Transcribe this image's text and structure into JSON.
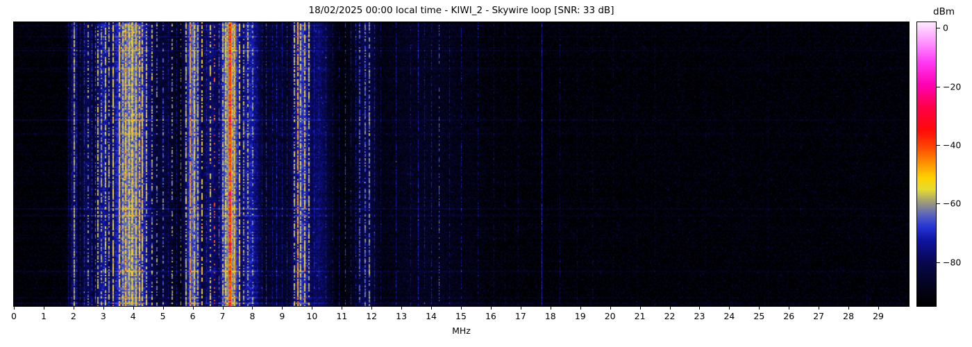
{
  "figure": {
    "title": "18/02/2025 00:00 local time - KIWI_2 - Skywire loop [SNR: 33 dB]"
  },
  "x_axis": {
    "label": "MHz",
    "min_mhz": 0,
    "max_mhz": 30,
    "tick_labels": [
      "0",
      "1",
      "2",
      "3",
      "4",
      "5",
      "6",
      "7",
      "8",
      "9",
      "10",
      "11",
      "12",
      "13",
      "14",
      "15",
      "16",
      "17",
      "18",
      "19",
      "20",
      "21",
      "22",
      "23",
      "24",
      "25",
      "26",
      "27",
      "28",
      "29"
    ]
  },
  "colorbar": {
    "title": "dBm",
    "tick_values": [
      0,
      -20,
      -40,
      -60,
      -80
    ],
    "tick_labels": [
      "0",
      "−20",
      "−40",
      "−60",
      "−80"
    ],
    "vmax_dbm": 2,
    "vmin_dbm": -95
  },
  "chart_data": {
    "type": "heatmap",
    "subtype": "radio-spectrum-waterfall",
    "title": "18/02/2025 00:00 local time - KIWI_2 - Skywire loop [SNR: 33 dB]",
    "xlabel": "MHz",
    "x_range_mhz": [
      0,
      30
    ],
    "value_range_dbm": [
      -95,
      2
    ],
    "noise_floor_dbm": -93,
    "seed": 20250218,
    "cell_noise_db": 3.5,
    "row_streaks": {
      "probability": 0.07,
      "min_db": 2,
      "max_db": 7
    },
    "colormap_stops": [
      [
        0.0,
        0,
        0,
        0
      ],
      [
        0.08,
        4,
        4,
        35
      ],
      [
        0.16,
        8,
        8,
        85
      ],
      [
        0.23,
        15,
        20,
        160
      ],
      [
        0.28,
        40,
        55,
        215
      ],
      [
        0.32,
        90,
        100,
        190
      ],
      [
        0.36,
        150,
        150,
        130
      ],
      [
        0.41,
        230,
        220,
        50
      ],
      [
        0.45,
        255,
        210,
        0
      ],
      [
        0.5,
        255,
        150,
        0
      ],
      [
        0.56,
        255,
        70,
        0
      ],
      [
        0.62,
        255,
        10,
        10
      ],
      [
        0.7,
        255,
        0,
        70
      ],
      [
        0.78,
        255,
        0,
        180
      ],
      [
        0.86,
        255,
        60,
        245
      ],
      [
        0.93,
        255,
        150,
        255
      ],
      [
        1.0,
        255,
        235,
        255
      ]
    ],
    "bands": [
      {
        "center_mhz": 2.0,
        "width_mhz": 0.12,
        "peak_dbm": -78
      },
      {
        "center_mhz": 2.45,
        "width_mhz": 0.2,
        "peak_dbm": -80
      },
      {
        "center_mhz": 3.0,
        "width_mhz": 0.25,
        "peak_dbm": -73
      },
      {
        "center_mhz": 3.9,
        "width_mhz": 0.55,
        "peak_dbm": -63
      },
      {
        "center_mhz": 5.0,
        "width_mhz": 0.4,
        "peak_dbm": -84
      },
      {
        "center_mhz": 6.0,
        "width_mhz": 0.22,
        "peak_dbm": -65
      },
      {
        "center_mhz": 6.6,
        "width_mhz": 0.3,
        "peak_dbm": -77
      },
      {
        "center_mhz": 7.25,
        "width_mhz": 0.28,
        "peak_dbm": -59
      },
      {
        "center_mhz": 7.9,
        "width_mhz": 0.3,
        "peak_dbm": -72
      },
      {
        "center_mhz": 8.8,
        "width_mhz": 0.5,
        "peak_dbm": -85
      },
      {
        "center_mhz": 9.65,
        "width_mhz": 0.28,
        "peak_dbm": -69
      },
      {
        "center_mhz": 10.2,
        "width_mhz": 0.32,
        "peak_dbm": -78
      },
      {
        "center_mhz": 11.8,
        "width_mhz": 0.3,
        "peak_dbm": -81
      },
      {
        "center_mhz": 13.8,
        "width_mhz": 1.2,
        "peak_dbm": -88
      }
    ],
    "carriers": [
      {
        "f": 1.82,
        "l": -78,
        "duty": 0.85,
        "w": 1
      },
      {
        "f": 1.93,
        "l": -74,
        "duty": 0.8,
        "w": 1
      },
      {
        "f": 2.02,
        "l": -60,
        "duty": 0.85,
        "w": 2
      },
      {
        "f": 2.1,
        "l": -72,
        "duty": 0.75,
        "w": 1
      },
      {
        "f": 2.22,
        "l": -74,
        "duty": 0.7,
        "w": 1
      },
      {
        "f": 2.35,
        "l": -70,
        "duty": 0.75,
        "w": 1
      },
      {
        "f": 2.5,
        "l": -62,
        "duty": 0.45,
        "w": 2
      },
      {
        "f": 2.62,
        "l": -68,
        "duty": 0.6,
        "w": 1
      },
      {
        "f": 2.72,
        "l": -65,
        "duty": 0.55,
        "w": 1
      },
      {
        "f": 2.82,
        "l": -58,
        "duty": 0.7,
        "w": 2
      },
      {
        "f": 2.94,
        "l": -60,
        "duty": 0.6,
        "w": 2
      },
      {
        "f": 3.07,
        "l": -57,
        "duty": 0.7,
        "w": 2
      },
      {
        "f": 3.2,
        "l": -60,
        "duty": 0.65,
        "w": 2
      },
      {
        "f": 3.33,
        "l": -55,
        "duty": 0.8,
        "w": 2
      },
      {
        "f": 3.44,
        "l": -70,
        "duty": 0.5,
        "w": 1
      },
      {
        "f": 3.55,
        "l": -52,
        "duty": 0.85,
        "w": 2
      },
      {
        "f": 3.65,
        "l": -56,
        "duty": 0.7,
        "w": 2
      },
      {
        "f": 3.76,
        "l": -50,
        "duty": 0.8,
        "w": 2
      },
      {
        "f": 3.86,
        "l": -55,
        "duty": 0.8,
        "w": 2
      },
      {
        "f": 3.96,
        "l": -52,
        "duty": 0.85,
        "w": 3
      },
      {
        "f": 4.1,
        "l": -54,
        "duty": 0.8,
        "w": 2
      },
      {
        "f": 4.21,
        "l": -50,
        "duty": 0.7,
        "w": 2
      },
      {
        "f": 4.32,
        "l": -53,
        "duty": 0.8,
        "w": 2
      },
      {
        "f": 4.46,
        "l": -57,
        "duty": 0.7,
        "w": 2
      },
      {
        "f": 4.63,
        "l": -60,
        "duty": 0.5,
        "w": 2
      },
      {
        "f": 4.8,
        "l": -63,
        "duty": 0.4,
        "w": 2
      },
      {
        "f": 5.0,
        "l": -66,
        "duty": 0.5,
        "w": 2
      },
      {
        "f": 5.16,
        "l": -75,
        "duty": 0.6,
        "w": 1
      },
      {
        "f": 5.3,
        "l": -62,
        "duty": 0.45,
        "w": 2
      },
      {
        "f": 5.46,
        "l": -74,
        "duty": 0.6,
        "w": 1
      },
      {
        "f": 5.6,
        "l": -62,
        "duty": 0.4,
        "w": 1
      },
      {
        "f": 5.78,
        "l": -58,
        "duty": 0.7,
        "w": 2
      },
      {
        "f": 5.92,
        "l": -48,
        "duty": 0.85,
        "w": 2
      },
      {
        "f": 6.06,
        "l": -55,
        "duty": 0.8,
        "w": 2
      },
      {
        "f": 6.18,
        "l": -58,
        "duty": 0.7,
        "w": 2
      },
      {
        "f": 6.31,
        "l": -52,
        "duty": 0.6,
        "w": 2
      },
      {
        "f": 6.46,
        "l": -70,
        "duty": 0.6,
        "w": 1
      },
      {
        "f": 6.6,
        "l": -55,
        "duty": 0.5,
        "w": 2
      },
      {
        "f": 6.73,
        "l": -42,
        "duty": 0.25,
        "w": 2
      },
      {
        "f": 6.86,
        "l": -62,
        "duty": 0.5,
        "w": 1
      },
      {
        "f": 7.0,
        "l": -58,
        "duty": 0.7,
        "w": 2
      },
      {
        "f": 7.11,
        "l": -55,
        "duty": 0.8,
        "w": 2
      },
      {
        "f": 7.25,
        "l": -38,
        "duty": 1.0,
        "w": 4,
        "hot": true
      },
      {
        "f": 7.41,
        "l": -50,
        "duty": 0.8,
        "w": 2
      },
      {
        "f": 7.56,
        "l": -55,
        "duty": 0.7,
        "w": 2
      },
      {
        "f": 7.7,
        "l": -60,
        "duty": 0.6,
        "w": 2
      },
      {
        "f": 7.86,
        "l": -58,
        "duty": 0.6,
        "w": 2
      },
      {
        "f": 8.02,
        "l": -62,
        "duty": 0.5,
        "w": 2
      },
      {
        "f": 8.16,
        "l": -74,
        "duty": 0.6,
        "w": 1
      },
      {
        "f": 8.31,
        "l": -76,
        "duty": 0.7,
        "w": 1
      },
      {
        "f": 8.46,
        "l": -70,
        "duty": 0.6,
        "w": 1
      },
      {
        "f": 8.66,
        "l": -74,
        "duty": 0.6,
        "w": 1
      },
      {
        "f": 8.81,
        "l": -72,
        "duty": 0.7,
        "w": 1
      },
      {
        "f": 9.0,
        "l": -74,
        "duty": 0.6,
        "w": 1
      },
      {
        "f": 9.16,
        "l": -72,
        "duty": 0.6,
        "w": 1
      },
      {
        "f": 9.41,
        "l": -58,
        "duty": 0.6,
        "w": 2
      },
      {
        "f": 9.52,
        "l": -48,
        "duty": 0.8,
        "w": 2
      },
      {
        "f": 9.62,
        "l": -56,
        "duty": 0.7,
        "w": 2
      },
      {
        "f": 9.76,
        "l": -52,
        "duty": 0.7,
        "w": 2
      },
      {
        "f": 9.9,
        "l": -58,
        "duty": 0.6,
        "w": 2
      },
      {
        "f": 10.06,
        "l": -72,
        "duty": 0.8,
        "w": 1
      },
      {
        "f": 10.22,
        "l": -74,
        "duty": 0.7,
        "w": 1
      },
      {
        "f": 10.46,
        "l": -74,
        "duty": 0.6,
        "w": 1
      },
      {
        "f": 10.7,
        "l": -78,
        "duty": 0.6,
        "w": 1
      },
      {
        "f": 10.9,
        "l": -76,
        "duty": 0.5,
        "w": 1
      },
      {
        "f": 11.1,
        "l": -68,
        "duty": 0.5,
        "w": 1
      },
      {
        "f": 11.3,
        "l": -74,
        "duty": 0.6,
        "w": 1
      },
      {
        "f": 11.46,
        "l": -72,
        "duty": 0.5,
        "w": 1
      },
      {
        "f": 11.61,
        "l": -66,
        "duty": 0.6,
        "w": 2
      },
      {
        "f": 11.79,
        "l": -64,
        "duty": 0.6,
        "w": 2
      },
      {
        "f": 11.93,
        "l": -62,
        "duty": 0.7,
        "w": 2
      },
      {
        "f": 12.1,
        "l": -72,
        "duty": 0.6,
        "w": 1
      },
      {
        "f": 12.3,
        "l": -78,
        "duty": 0.5,
        "w": 1
      },
      {
        "f": 12.8,
        "l": -74,
        "duty": 0.7,
        "w": 1
      },
      {
        "f": 13.3,
        "l": -76,
        "duty": 0.6,
        "w": 1
      },
      {
        "f": 13.56,
        "l": -72,
        "duty": 0.7,
        "w": 1
      },
      {
        "f": 13.76,
        "l": -74,
        "duty": 0.6,
        "w": 1
      },
      {
        "f": 14.0,
        "l": -72,
        "duty": 0.6,
        "w": 1
      },
      {
        "f": 14.26,
        "l": -64,
        "duty": 0.4,
        "w": 1
      },
      {
        "f": 14.6,
        "l": -76,
        "duty": 0.5,
        "w": 1
      },
      {
        "f": 15.0,
        "l": -74,
        "duty": 0.5,
        "w": 1
      },
      {
        "f": 15.56,
        "l": -78,
        "duty": 0.5,
        "w": 1
      },
      {
        "f": 16.1,
        "l": -80,
        "duty": 0.5,
        "w": 1
      },
      {
        "f": 16.46,
        "l": -82,
        "duty": 0.4,
        "w": 1
      },
      {
        "f": 16.9,
        "l": -80,
        "duty": 0.4,
        "w": 1
      },
      {
        "f": 17.7,
        "l": -72,
        "duty": 0.95,
        "w": 1
      },
      {
        "f": 18.3,
        "l": -80,
        "duty": 0.5,
        "w": 1
      },
      {
        "f": 18.9,
        "l": -84,
        "duty": 0.4,
        "w": 1
      },
      {
        "f": 19.4,
        "l": -82,
        "duty": 0.4,
        "w": 1
      },
      {
        "f": 20.1,
        "l": -83,
        "duty": 0.4,
        "w": 1
      },
      {
        "f": 20.9,
        "l": -84,
        "duty": 0.35,
        "w": 1
      },
      {
        "f": 21.5,
        "l": -83,
        "duty": 0.35,
        "w": 1
      },
      {
        "f": 22.3,
        "l": -84,
        "duty": 0.3,
        "w": 1
      },
      {
        "f": 23.2,
        "l": -85,
        "duty": 0.3,
        "w": 1
      },
      {
        "f": 24.1,
        "l": -84,
        "duty": 0.3,
        "w": 1
      },
      {
        "f": 25.3,
        "l": -85,
        "duty": 0.3,
        "w": 1
      },
      {
        "f": 26.4,
        "l": -85,
        "duty": 0.25,
        "w": 1
      },
      {
        "f": 27.6,
        "l": -85,
        "duty": 0.25,
        "w": 1
      },
      {
        "f": 28.6,
        "l": -85,
        "duty": 0.25,
        "w": 1
      }
    ]
  }
}
